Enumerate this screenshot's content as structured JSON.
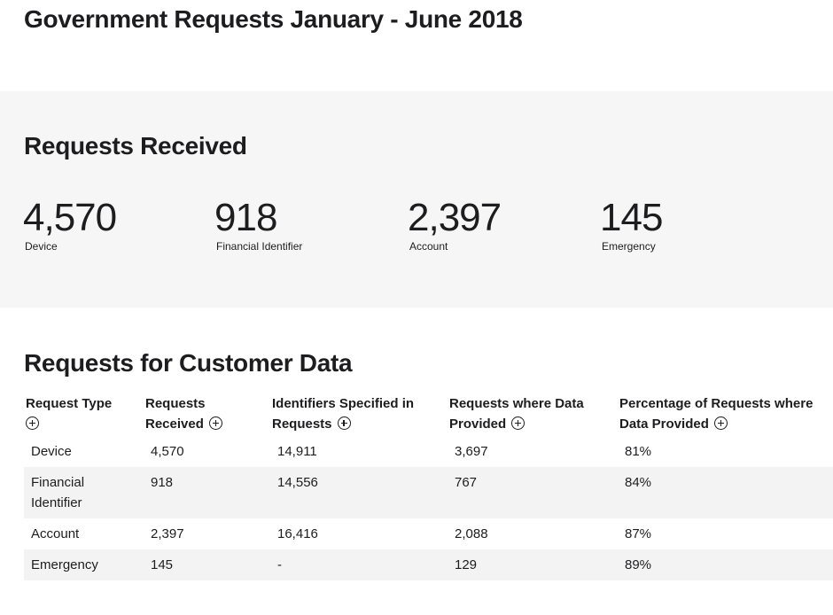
{
  "page": {
    "title": "Government Requests January - June 2018"
  },
  "received": {
    "title": "Requests Received",
    "stats": [
      {
        "value": "4,570",
        "label": "Device"
      },
      {
        "value": "918",
        "label": "Financial Identifier"
      },
      {
        "value": "2,397",
        "label": "Account"
      },
      {
        "value": "145",
        "label": "Emergency"
      }
    ]
  },
  "customer": {
    "title": "Requests for Customer Data",
    "headers": [
      "Request Type",
      "Requests Received",
      "Identifiers Specified in Requests",
      "Requests where Data Provided",
      "Percentage of Requests where Data Provided"
    ],
    "rows": [
      [
        "Device",
        "4,570",
        "14,911",
        "3,697",
        "81%"
      ],
      [
        "Financial Identifier",
        "918",
        "14,556",
        "767",
        "84%"
      ],
      [
        "Account",
        "2,397",
        "16,416",
        "2,088",
        "87%"
      ],
      [
        "Emergency",
        "145",
        "-",
        "129",
        "89%"
      ]
    ]
  },
  "icons": {
    "expand": "plus-circle-icon"
  }
}
